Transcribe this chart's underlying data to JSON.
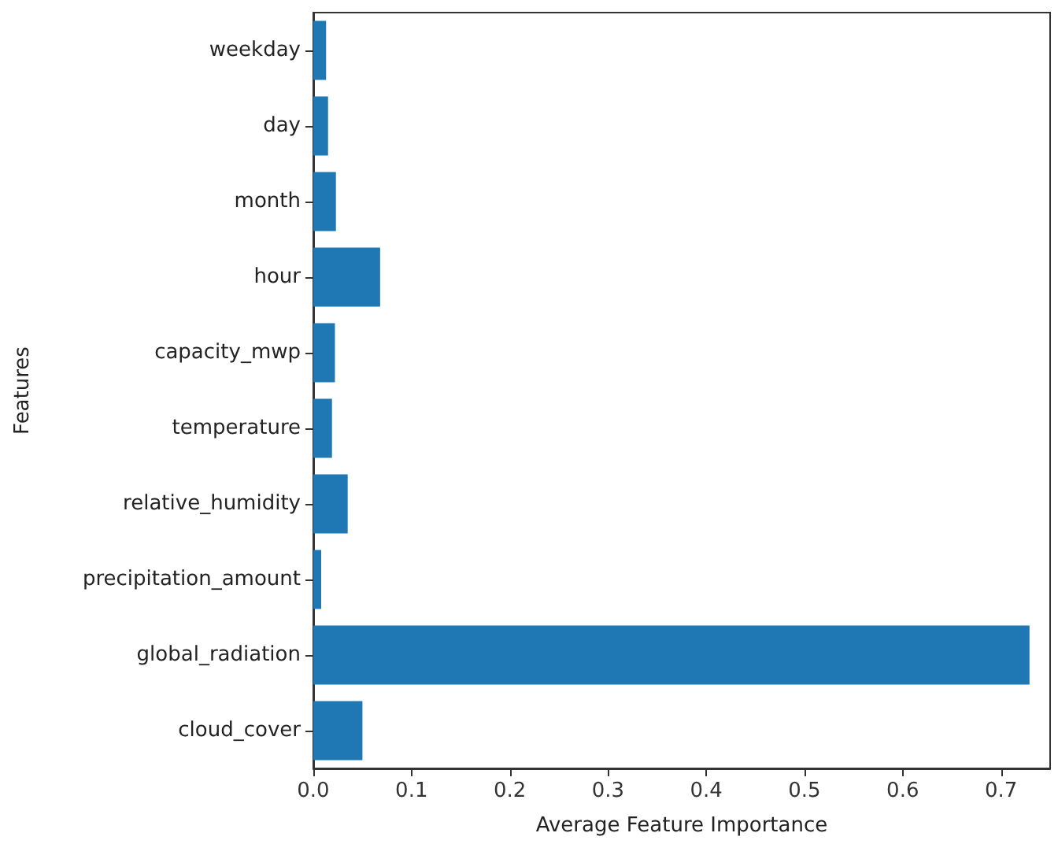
{
  "chart_data": {
    "type": "bar",
    "orientation": "horizontal",
    "xlabel": "Average Feature Importance",
    "ylabel": "Features",
    "categories": [
      "weekday",
      "day",
      "month",
      "hour",
      "capacity_mwp",
      "temperature",
      "relative_humidity",
      "precipitation_amount",
      "global_radiation",
      "cloud_cover"
    ],
    "values": [
      0.013,
      0.015,
      0.023,
      0.068,
      0.022,
      0.019,
      0.035,
      0.008,
      0.729,
      0.05
    ],
    "color": "#1f77b4",
    "xlim": [
      0,
      0.75
    ],
    "xticks": [
      {
        "value": 0,
        "label": "0.0"
      },
      {
        "value": 0.1,
        "label": "0.1"
      },
      {
        "value": 0.2,
        "label": "0.2"
      },
      {
        "value": 0.3,
        "label": "0.3"
      },
      {
        "value": 0.4,
        "label": "0.4"
      },
      {
        "value": 0.5,
        "label": "0.5"
      },
      {
        "value": 0.6,
        "label": "0.6"
      },
      {
        "value": 0.7,
        "label": "0.7"
      }
    ],
    "data_labels": false
  }
}
